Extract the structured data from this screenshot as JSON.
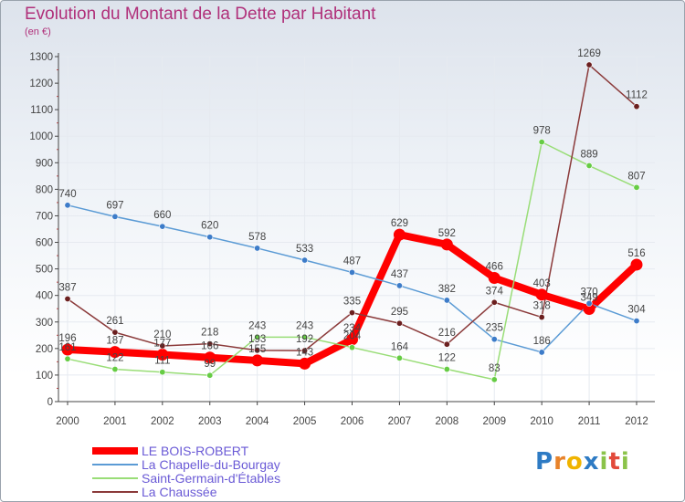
{
  "title": "Evolution du Montant de la Dette par Habitant",
  "subtitle": "(en €)",
  "logo_text": "Proxiti",
  "colors": {
    "title": "#b0307a",
    "axis": "#444444",
    "grid": "#ffffff",
    "label": "#444444",
    "legend_text": "#6a5ad6"
  },
  "chart_data": {
    "type": "line",
    "title": "Evolution du Montant de la Dette par Habitant",
    "subtitle": "(en €)",
    "x": [
      "2000",
      "2001",
      "2002",
      "2003",
      "2004",
      "2005",
      "2006",
      "2007",
      "2008",
      "2009",
      "2010",
      "2011",
      "2012"
    ],
    "yticks": [
      0,
      100,
      200,
      300,
      400,
      500,
      600,
      700,
      800,
      900,
      1000,
      1100,
      1200,
      1300
    ],
    "ylim": [
      0,
      1300
    ],
    "grid": true,
    "legend_position": "bottom-left",
    "series": [
      {
        "name": "LE BOIS-ROBERT",
        "color": "#ff0000",
        "point_color": "#ff0000",
        "width": 8,
        "values": [
          196,
          187,
          177,
          166,
          155,
          143,
          234,
          629,
          592,
          466,
          403,
          349,
          516
        ]
      },
      {
        "name": "La Chapelle-du-Bourgay",
        "color": "#5b9bd5",
        "point_color": "#3d7cc9",
        "width": 1.5,
        "values": [
          740,
          697,
          660,
          620,
          578,
          533,
          487,
          437,
          382,
          235,
          186,
          370,
          304
        ]
      },
      {
        "name": "Saint-Germain-d'Étables",
        "color": "#99dd77",
        "point_color": "#66cc44",
        "width": 1.5,
        "values": [
          161,
          122,
          111,
          99,
          243,
          243,
          204,
          164,
          122,
          83,
          978,
          889,
          807
        ]
      },
      {
        "name": "La Chaussée",
        "color": "#8b3a3a",
        "point_color": "#6b1f1f",
        "width": 1.5,
        "values": [
          387,
          261,
          210,
          218,
          193,
          192,
          335,
          295,
          216,
          374,
          318,
          1269,
          1112
        ]
      }
    ],
    "data_labels": [
      [
        196,
        187,
        177,
        166,
        155,
        143,
        234,
        629,
        592,
        466,
        403,
        349,
        516
      ],
      [
        740,
        697,
        660,
        620,
        578,
        533,
        487,
        437,
        382,
        235,
        186,
        370,
        304
      ],
      [
        161,
        122,
        111,
        99,
        243,
        243,
        204,
        164,
        122,
        83,
        978,
        889,
        807
      ],
      [
        387,
        261,
        210,
        218,
        193,
        192,
        335,
        295,
        216,
        374,
        318,
        1269,
        1112
      ]
    ]
  }
}
